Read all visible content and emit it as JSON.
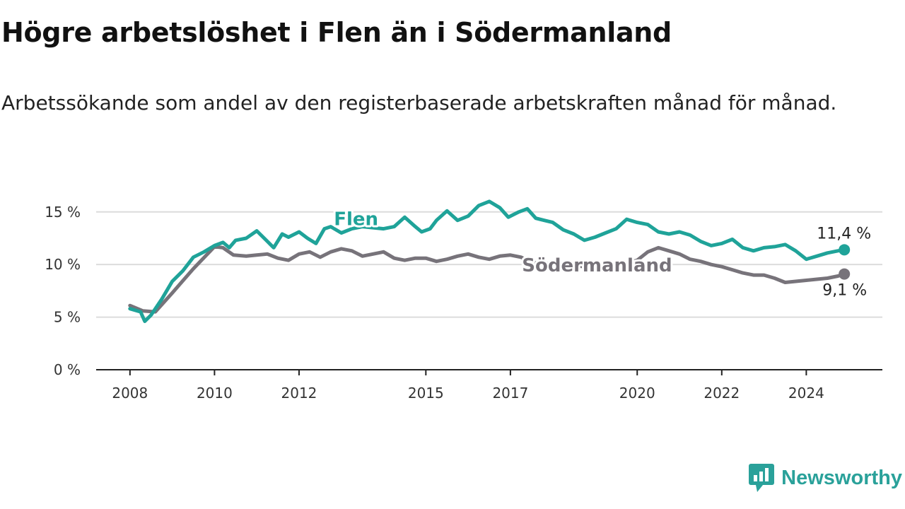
{
  "chart_data": {
    "type": "line",
    "title": "Högre arbetslöshet i Flen än i Södermanland",
    "subtitle": "Arbetssökande som andel av den registerbaserade arbetskraften månad för månad.",
    "y_ticks": [
      {
        "value": 0,
        "label": "0 %"
      },
      {
        "value": 5,
        "label": "5 %"
      },
      {
        "value": 10,
        "label": "10 %"
      },
      {
        "value": 15,
        "label": "15 %"
      }
    ],
    "x_ticks": [
      {
        "value": 2008.0,
        "label": "2008"
      },
      {
        "value": 2010.0,
        "label": "2010"
      },
      {
        "value": 2012.0,
        "label": "2012"
      },
      {
        "value": 2015.0,
        "label": "2015"
      },
      {
        "value": 2017.0,
        "label": "2017"
      },
      {
        "value": 2020.0,
        "label": "2020"
      },
      {
        "value": 2022.0,
        "label": "2022"
      },
      {
        "value": 2024.0,
        "label": "2024"
      }
    ],
    "ylim": [
      0,
      17
    ],
    "xlim": [
      2007.2,
      2025.8
    ],
    "grid": true,
    "series": [
      {
        "name": "Flen",
        "color": "#1fa399",
        "end_label": "11,4 %",
        "x": [
          2008.0,
          2008.25,
          2008.35,
          2008.5,
          2008.75,
          2009.0,
          2009.25,
          2009.5,
          2009.75,
          2010.0,
          2010.2,
          2010.35,
          2010.5,
          2010.75,
          2011.0,
          2011.25,
          2011.4,
          2011.6,
          2011.75,
          2012.0,
          2012.2,
          2012.4,
          2012.6,
          2012.75,
          2013.0,
          2013.25,
          2013.5,
          2013.75,
          2014.0,
          2014.25,
          2014.5,
          2014.75,
          2014.9,
          2015.1,
          2015.25,
          2015.5,
          2015.75,
          2016.0,
          2016.25,
          2016.5,
          2016.75,
          2016.95,
          2017.2,
          2017.4,
          2017.6,
          2017.8,
          2018.0,
          2018.25,
          2018.5,
          2018.75,
          2019.0,
          2019.25,
          2019.5,
          2019.75,
          2020.0,
          2020.25,
          2020.5,
          2020.75,
          2021.0,
          2021.25,
          2021.5,
          2021.75,
          2022.0,
          2022.25,
          2022.5,
          2022.75,
          2023.0,
          2023.25,
          2023.5,
          2023.75,
          2024.0,
          2024.25,
          2024.5,
          2024.75,
          2024.9
        ],
        "y": [
          5.8,
          5.5,
          4.6,
          5.2,
          6.7,
          8.4,
          9.4,
          10.7,
          11.2,
          11.8,
          12.1,
          11.6,
          12.3,
          12.5,
          13.2,
          12.2,
          11.6,
          12.9,
          12.6,
          13.1,
          12.5,
          12.0,
          13.4,
          13.6,
          13.0,
          13.4,
          13.6,
          13.5,
          13.4,
          13.6,
          14.5,
          13.6,
          13.1,
          13.4,
          14.2,
          15.1,
          14.2,
          14.6,
          15.6,
          16.0,
          15.4,
          14.5,
          15.0,
          15.3,
          14.4,
          14.2,
          14.0,
          13.3,
          12.9,
          12.3,
          12.6,
          13.0,
          13.4,
          14.3,
          14.0,
          13.8,
          13.1,
          12.9,
          13.1,
          12.8,
          12.2,
          11.8,
          12.0,
          12.4,
          11.6,
          11.3,
          11.6,
          11.7,
          11.9,
          11.3,
          10.5,
          10.8,
          11.1,
          11.3,
          11.4
        ]
      },
      {
        "name": "Södermanland",
        "color": "#77737a",
        "end_label": "9,1 %",
        "x": [
          2008.0,
          2008.3,
          2008.6,
          2009.0,
          2009.5,
          2010.0,
          2010.2,
          2010.45,
          2010.75,
          2011.0,
          2011.25,
          2011.5,
          2011.75,
          2012.0,
          2012.25,
          2012.5,
          2012.75,
          2013.0,
          2013.25,
          2013.5,
          2013.75,
          2014.0,
          2014.25,
          2014.5,
          2014.75,
          2015.0,
          2015.25,
          2015.5,
          2015.75,
          2016.0,
          2016.25,
          2016.5,
          2016.75,
          2017.0,
          2017.25,
          2017.5,
          2017.75,
          2018.0,
          2018.25,
          2018.5,
          2018.75,
          2019.0,
          2019.25,
          2019.5,
          2019.75,
          2020.0,
          2020.25,
          2020.5,
          2020.75,
          2021.0,
          2021.25,
          2021.5,
          2021.75,
          2022.0,
          2022.25,
          2022.5,
          2022.75,
          2023.0,
          2023.25,
          2023.5,
          2023.75,
          2024.0,
          2024.25,
          2024.5,
          2024.75,
          2024.9
        ],
        "y": [
          6.1,
          5.6,
          5.5,
          7.3,
          9.6,
          11.7,
          11.6,
          10.9,
          10.8,
          10.9,
          11.0,
          10.6,
          10.4,
          11.0,
          11.2,
          10.7,
          11.2,
          11.5,
          11.3,
          10.8,
          11.0,
          11.2,
          10.6,
          10.4,
          10.6,
          10.6,
          10.3,
          10.5,
          10.8,
          11.0,
          10.7,
          10.5,
          10.8,
          10.9,
          10.7,
          10.2,
          10.1,
          10.1,
          10.0,
          9.9,
          9.8,
          9.9,
          10.0,
          10.0,
          10.1,
          10.4,
          11.2,
          11.6,
          11.3,
          11.0,
          10.5,
          10.3,
          10.0,
          9.8,
          9.5,
          9.2,
          9.0,
          9.0,
          8.7,
          8.3,
          8.4,
          8.5,
          8.6,
          8.7,
          8.9,
          9.1
        ]
      }
    ]
  },
  "brand": {
    "name": "Newsworthy",
    "color": "#2aa19a"
  }
}
